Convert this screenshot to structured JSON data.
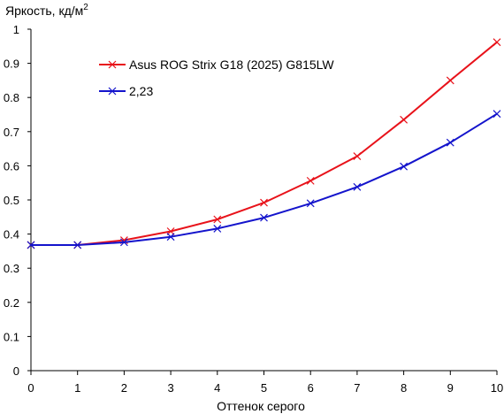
{
  "chart_data": {
    "type": "line",
    "title": "",
    "ylabel": "Яркость, кд/м",
    "ylabel_superscript": "2",
    "xlabel": "Оттенок серого",
    "xlim": [
      0,
      10
    ],
    "ylim": [
      0,
      1
    ],
    "x": [
      0,
      1,
      2,
      3,
      4,
      5,
      6,
      7,
      8,
      9,
      10
    ],
    "x_ticks": [
      "0",
      "1",
      "2",
      "3",
      "4",
      "5",
      "6",
      "7",
      "8",
      "9",
      "10"
    ],
    "y_ticks": [
      "0",
      "0.1",
      "0.2",
      "0.3",
      "0.4",
      "0.5",
      "0.6",
      "0.7",
      "0.8",
      "0.9",
      "1"
    ],
    "y_tick_values": [
      0,
      0.1,
      0.2,
      0.3,
      0.4,
      0.5,
      0.6,
      0.7,
      0.8,
      0.9,
      1
    ],
    "grid": false,
    "legend_position": "top-left",
    "series": [
      {
        "name": "Asus ROG Strix G18 (2025) G815LW",
        "color": "#e8121a",
        "marker": "x",
        "values": [
          0.368,
          0.368,
          0.382,
          0.408,
          0.443,
          0.492,
          0.556,
          0.628,
          0.735,
          0.85,
          0.962
        ]
      },
      {
        "name": "2,23",
        "color": "#1414cc",
        "marker": "x",
        "values": [
          0.368,
          0.368,
          0.376,
          0.392,
          0.416,
          0.448,
          0.49,
          0.538,
          0.598,
          0.668,
          0.752
        ]
      }
    ]
  }
}
